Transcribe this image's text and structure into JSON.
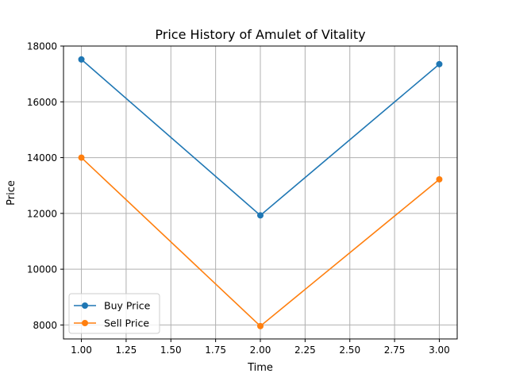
{
  "chart_data": {
    "type": "line",
    "title": "Price History of Amulet of Vitality",
    "xlabel": "Time",
    "ylabel": "Price",
    "x": [
      1.0,
      2.0,
      3.0
    ],
    "series": [
      {
        "name": "Buy Price",
        "color": "#1f77b4",
        "values": [
          17520,
          11930,
          17350
        ]
      },
      {
        "name": "Sell Price",
        "color": "#ff7f0e",
        "values": [
          14000,
          7960,
          13220
        ]
      }
    ],
    "xlim": [
      0.9,
      3.1
    ],
    "ylim": [
      7500,
      18000
    ],
    "xticks": [
      "1.00",
      "1.25",
      "1.50",
      "1.75",
      "2.00",
      "2.25",
      "2.50",
      "2.75",
      "3.00"
    ],
    "yticks": [
      "8000",
      "10000",
      "12000",
      "14000",
      "16000",
      "18000"
    ],
    "grid": true,
    "legend_position": "lower-left",
    "marker": "circle"
  }
}
